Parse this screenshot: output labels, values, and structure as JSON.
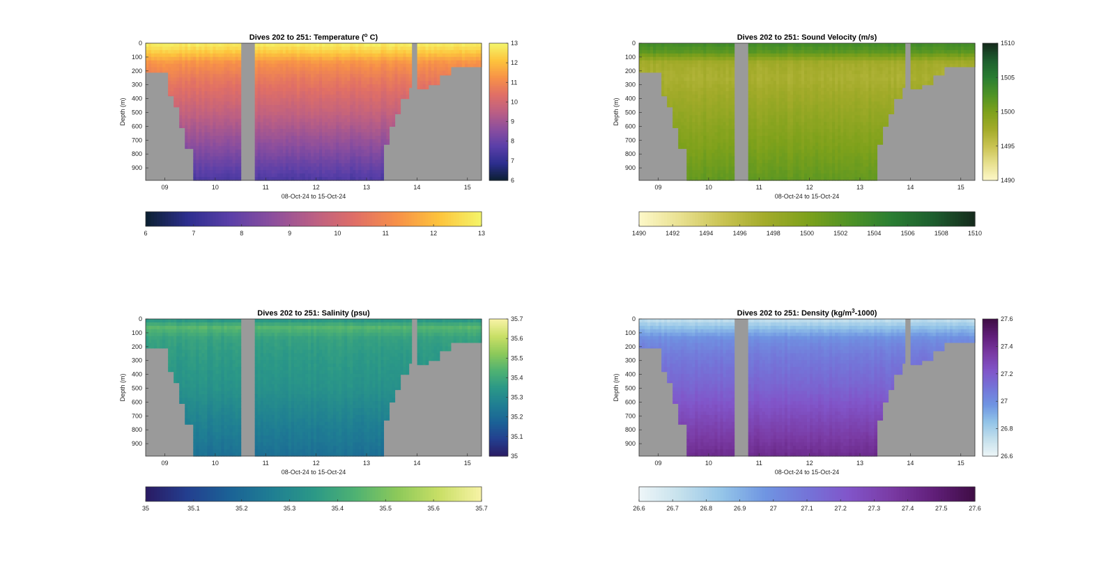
{
  "chart_data": [
    {
      "type": "heatmap",
      "title": "Dives 202 to 251: Temperature (",
      "title_sup": "o",
      "title_end": " C)",
      "xlabel": "08-Oct-24 to 15-Oct-24",
      "ylabel": "Depth (m)",
      "x_ticks": [
        "09",
        "10",
        "11",
        "12",
        "13",
        "14",
        "15"
      ],
      "y_ticks": [
        "0",
        "100",
        "200",
        "300",
        "400",
        "500",
        "600",
        "700",
        "800",
        "900"
      ],
      "x_range": [
        8.62,
        15.28
      ],
      "y_range": [
        0,
        990
      ],
      "cbar_range": [
        6,
        13
      ],
      "cbar_ticks": [
        "6",
        "7",
        "8",
        "9",
        "10",
        "11",
        "12",
        "13"
      ],
      "hbar_ticks": [
        "6",
        "7",
        "8",
        "9",
        "10",
        "11",
        "12",
        "13"
      ],
      "colormap": [
        "#0b1f30",
        "#2c2e8e",
        "#5a3fa8",
        "#8b4e9e",
        "#bb5f84",
        "#e06f66",
        "#f79148",
        "#fdc43c",
        "#f4f56a"
      ],
      "profile": {
        "depths": [
          0,
          60,
          140,
          250,
          500,
          750,
          990
        ],
        "values": [
          12.9,
          12.3,
          11.3,
          10.7,
          9.7,
          8.6,
          7.5
        ]
      }
    },
    {
      "type": "heatmap",
      "title": "Dives 202 to 251: Sound Velocity (m/s)",
      "xlabel": "08-Oct-24 to 15-Oct-24",
      "ylabel": "Depth (m)",
      "x_ticks": [
        "09",
        "10",
        "11",
        "12",
        "13",
        "14",
        "15"
      ],
      "y_ticks": [
        "0",
        "100",
        "200",
        "300",
        "400",
        "500",
        "600",
        "700",
        "800",
        "900"
      ],
      "x_range": [
        8.62,
        15.28
      ],
      "y_range": [
        0,
        990
      ],
      "cbar_range": [
        1490,
        1510
      ],
      "cbar_ticks": [
        "1490",
        "1495",
        "1500",
        "1505",
        "1510"
      ],
      "hbar_ticks": [
        "1490",
        "1492",
        "1494",
        "1496",
        "1498",
        "1500",
        "1502",
        "1504",
        "1506",
        "1508",
        "1510"
      ],
      "colormap": [
        "#fdf8c9",
        "#e8e08f",
        "#c9c352",
        "#a3ab2a",
        "#7ea11b",
        "#4f9325",
        "#2a7e32",
        "#1d5e2e",
        "#152a1c"
      ],
      "profile": {
        "depths": [
          0,
          60,
          140,
          250,
          500,
          750,
          990
        ],
        "values": [
          1503.5,
          1502,
          1497.5,
          1497,
          1498.5,
          1500,
          1501.5
        ]
      }
    },
    {
      "type": "heatmap",
      "title": "Dives 202 to 251: Salinity (psu)",
      "xlabel": "08-Oct-24 to 15-Oct-24",
      "ylabel": "Depth (m)",
      "x_ticks": [
        "09",
        "10",
        "11",
        "12",
        "13",
        "14",
        "15"
      ],
      "y_ticks": [
        "0",
        "100",
        "200",
        "300",
        "400",
        "500",
        "600",
        "700",
        "800",
        "900"
      ],
      "x_range": [
        8.62,
        15.28
      ],
      "y_range": [
        0,
        990
      ],
      "cbar_range": [
        35,
        35.7
      ],
      "cbar_ticks": [
        "35",
        "35.1",
        "35.2",
        "35.3",
        "35.4",
        "35.5",
        "35.6",
        "35.7"
      ],
      "hbar_ticks": [
        "35",
        "35.1",
        "35.2",
        "35.3",
        "35.4",
        "35.5",
        "35.6",
        "35.7"
      ],
      "colormap": [
        "#2a1a63",
        "#233f8f",
        "#1b6296",
        "#1f7e93",
        "#2b9887",
        "#4fb272",
        "#8dc95a",
        "#c9df66",
        "#f8f3a6"
      ],
      "profile": {
        "depths": [
          0,
          60,
          140,
          250,
          500,
          750,
          990
        ],
        "values": [
          35.33,
          35.45,
          35.38,
          35.36,
          35.33,
          35.27,
          35.22
        ]
      }
    },
    {
      "type": "heatmap",
      "title": "Dives 202 to 251: Density (kg/m",
      "title_sup": "3",
      "title_end": "-1000)",
      "xlabel": "08-Oct-24 to 15-Oct-24",
      "ylabel": "Depth (m)",
      "x_ticks": [
        "09",
        "10",
        "11",
        "12",
        "13",
        "14",
        "15"
      ],
      "y_ticks": [
        "0",
        "100",
        "200",
        "300",
        "400",
        "500",
        "600",
        "700",
        "800",
        "900"
      ],
      "x_range": [
        8.62,
        15.28
      ],
      "y_range": [
        0,
        990
      ],
      "cbar_range": [
        26.6,
        27.6
      ],
      "cbar_ticks": [
        "26.6",
        "26.8",
        "27",
        "27.2",
        "27.4",
        "27.6"
      ],
      "hbar_ticks": [
        "26.6",
        "26.7",
        "26.8",
        "26.9",
        "27",
        "27.1",
        "27.2",
        "27.3",
        "27.4",
        "27.5",
        "27.6"
      ],
      "colormap": [
        "#eef6f8",
        "#c4e0ec",
        "#93c4e8",
        "#6f95e2",
        "#7474d8",
        "#8155c9",
        "#7a3ba4",
        "#611f7a",
        "#3f0d45"
      ],
      "profile": {
        "depths": [
          0,
          60,
          140,
          250,
          500,
          750,
          990
        ],
        "values": [
          26.72,
          26.85,
          27.0,
          27.07,
          27.17,
          27.3,
          27.42
        ]
      }
    }
  ]
}
